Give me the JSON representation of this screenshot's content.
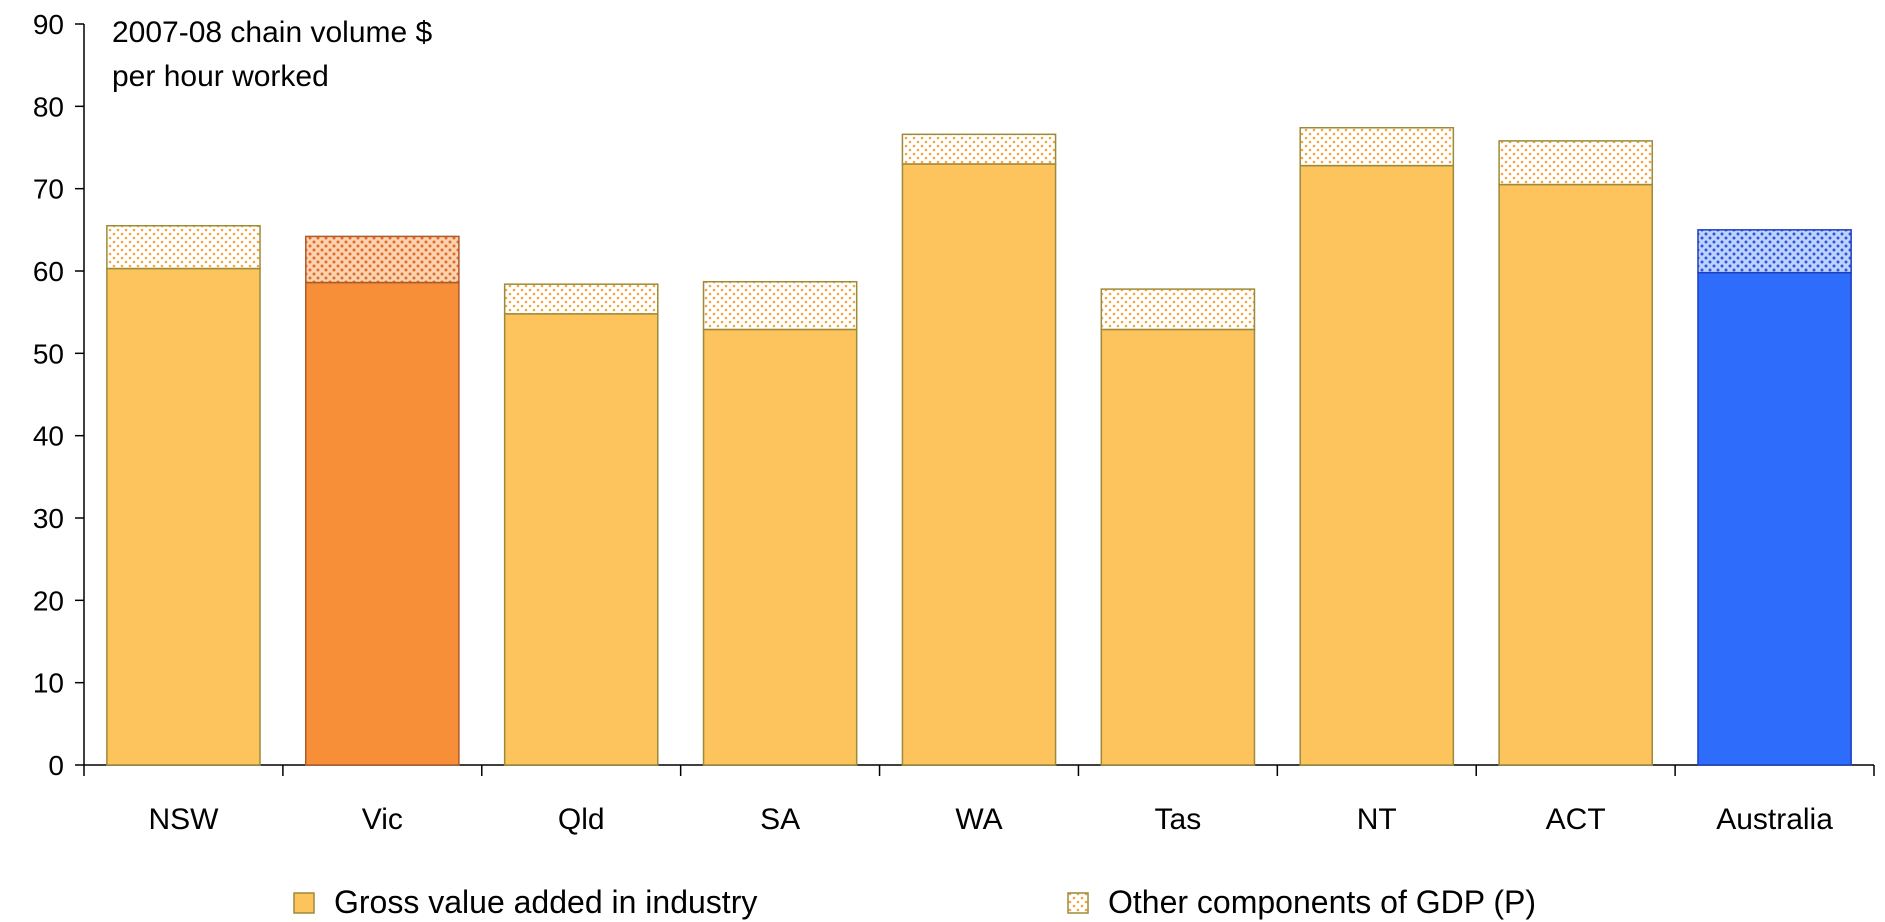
{
  "chart_data": {
    "type": "bar",
    "stacked": true,
    "unit_label_lines": [
      "2007-08 chain volume $",
      "per hour worked"
    ],
    "categories": [
      "NSW",
      "Vic",
      "Qld",
      "SA",
      "WA",
      "Tas",
      "NT",
      "ACT",
      "Australia"
    ],
    "series": [
      {
        "name": "Gross value added in industry",
        "values": [
          60.3,
          58.6,
          54.8,
          52.9,
          73.0,
          52.9,
          72.8,
          70.5,
          59.8
        ]
      },
      {
        "name": "Other components of GDP (P)",
        "values": [
          5.2,
          5.6,
          3.6,
          5.8,
          3.6,
          4.9,
          4.6,
          5.3,
          5.2
        ]
      }
    ],
    "ylim": [
      0,
      90
    ],
    "yticks": [
      0,
      10,
      20,
      30,
      40,
      50,
      60,
      70,
      80,
      90
    ],
    "grid": false,
    "legend_position": "bottom",
    "colors": {
      "default_base": "#FDC35C",
      "default_border": "#9C8A3A",
      "dots": "#F4A63F",
      "highlight_base": "#F78F38",
      "highlight_border": "#B05A2A",
      "highlight_dots": "#E06C2A",
      "australia_base": "#2E6CFB",
      "australia_border": "#1F3FBF",
      "australia_dots": "#2A58D8"
    },
    "highlight": {
      "Vic": "highlight",
      "Australia": "australia"
    }
  }
}
